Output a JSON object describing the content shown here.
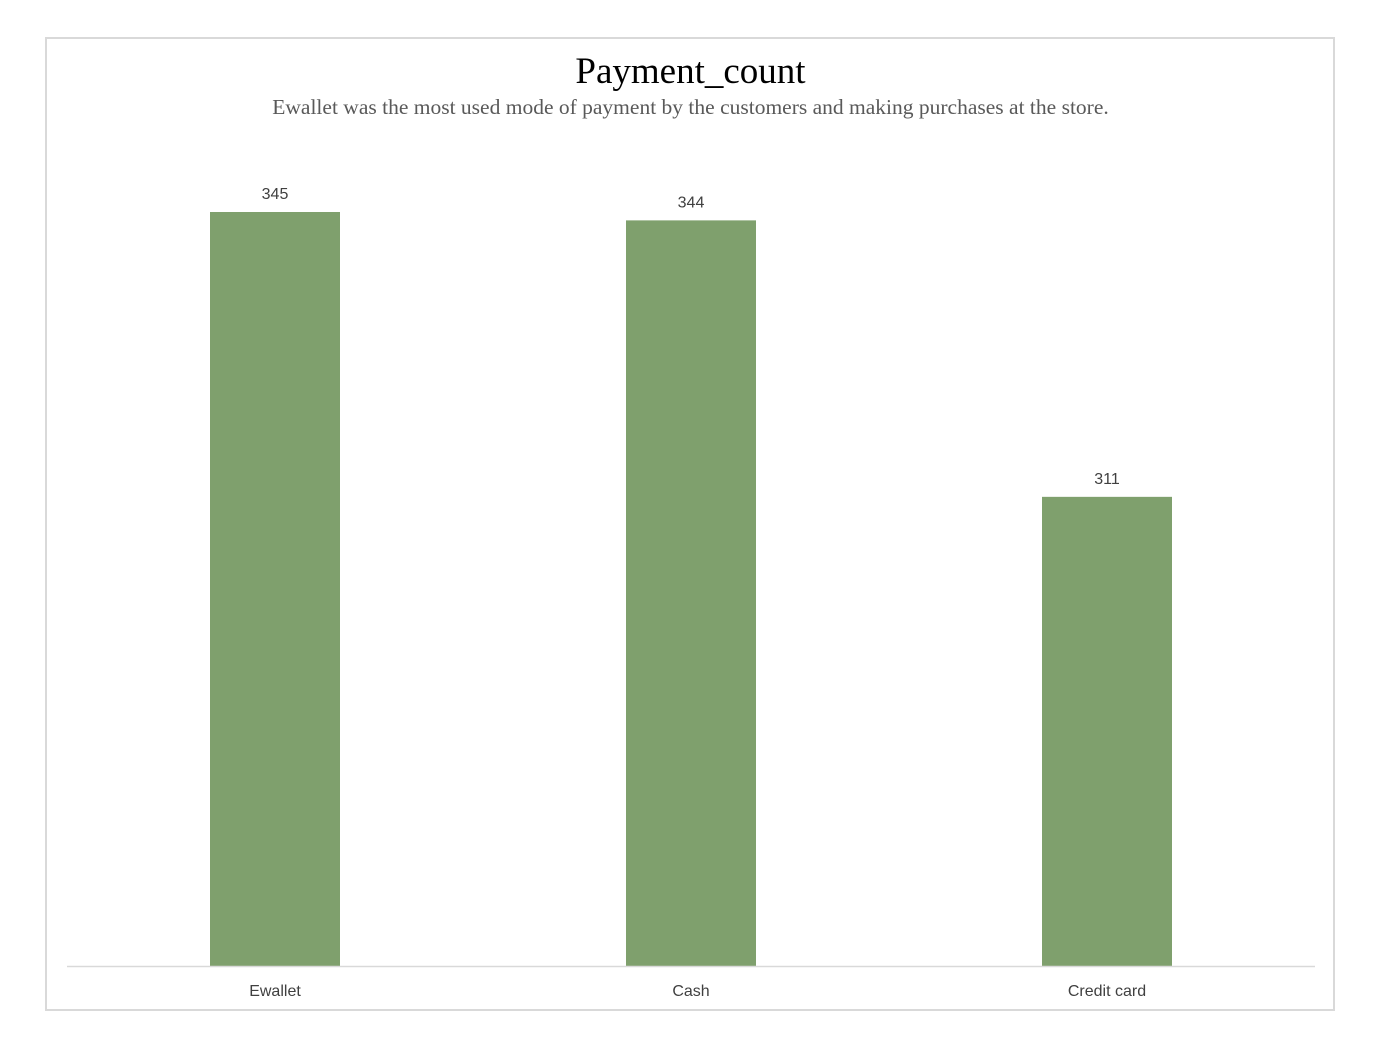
{
  "chart_data": {
    "type": "bar",
    "title": "Payment_count",
    "subtitle": "Ewallet was the most used mode of payment by the customers and making purchases at the store.",
    "categories": [
      "Ewallet",
      "Cash",
      "Credit card"
    ],
    "values": [
      345,
      344,
      311
    ],
    "data_labels": [
      "345",
      "344",
      "311"
    ],
    "xlabel": "",
    "ylabel": "",
    "ylim": [
      255,
      345
    ],
    "grid": false,
    "legend": "none",
    "bar_color": "#7fa06d",
    "axis_color": "#d9d9d9"
  }
}
